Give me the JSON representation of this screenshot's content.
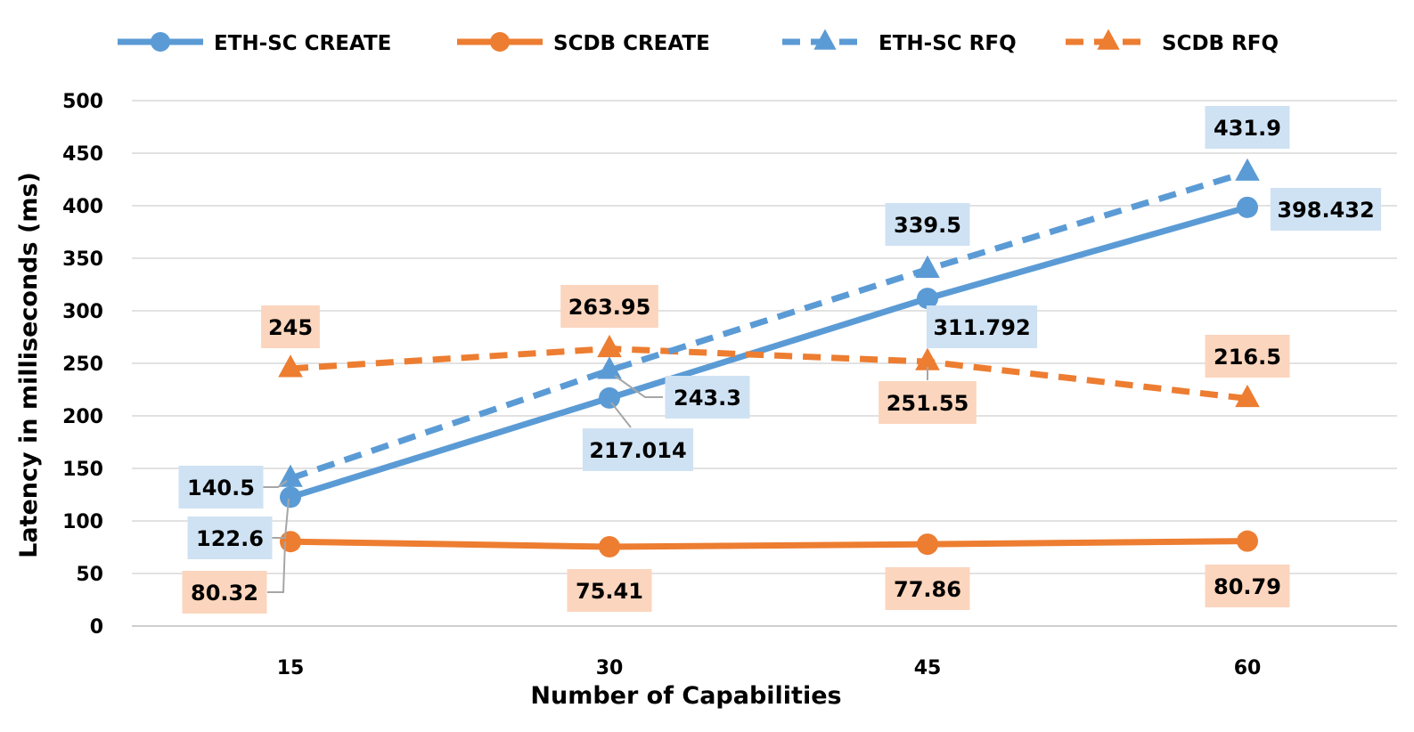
{
  "chart_data": {
    "type": "line",
    "xlabel": "Number of Capabilities",
    "ylabel": "Latency  in milliseconds (ms)",
    "ylim": [
      0,
      500
    ],
    "ytick_step": 50,
    "grid": true,
    "legend_position": "top",
    "x": [
      "15",
      "30",
      "45",
      "60"
    ],
    "series": [
      {
        "name": "ETH-SC CREATE",
        "values": [
          122.6,
          217.014,
          311.792,
          398.432
        ],
        "labels": [
          "122.6",
          "217.014",
          "311.792",
          "398.432"
        ],
        "color": "#5b9bd5",
        "dash": false,
        "marker": "circle"
      },
      {
        "name": "SCDB CREATE",
        "values": [
          80.32,
          75.41,
          77.86,
          80.79
        ],
        "labels": [
          "80.32",
          "75.41",
          "77.86",
          "80.79"
        ],
        "color": "#ed7d31",
        "dash": false,
        "marker": "circle"
      },
      {
        "name": "ETH-SC RFQ",
        "values": [
          140.5,
          243.3,
          339.5,
          431.9
        ],
        "labels": [
          "140.5",
          "243.3",
          "339.5",
          "431.9"
        ],
        "color": "#5b9bd5",
        "dash": true,
        "marker": "triangle"
      },
      {
        "name": "SCDB RFQ",
        "values": [
          245,
          263.95,
          251.55,
          216.5
        ],
        "labels": [
          "245",
          "263.95",
          "251.55",
          "216.5"
        ],
        "color": "#ed7d31",
        "dash": true,
        "marker": "triangle"
      }
    ]
  }
}
